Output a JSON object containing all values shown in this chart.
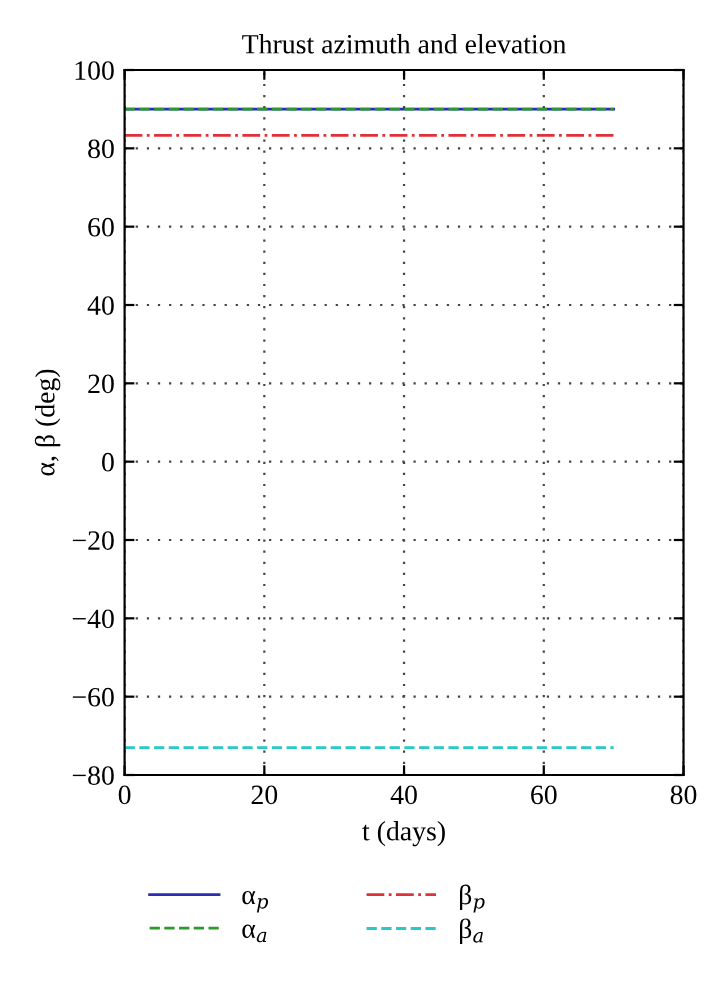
{
  "chart_data": {
    "type": "line",
    "title": "Thrust azimuth and elevation",
    "xlabel": "t (days)",
    "ylabel": "α, β (deg)",
    "x": [
      0,
      70
    ],
    "series": [
      {
        "name": "α$_{p}$",
        "color": "#2b2bb5",
        "values": [
          90,
          90
        ],
        "line_style": "solid"
      },
      {
        "name": "α$_{a}$",
        "color": "#2a9a2a",
        "values": [
          90,
          90
        ],
        "line_style": "dashed"
      },
      {
        "name": "β$_{p}$",
        "color": "#e0303a",
        "values": [
          83.3,
          83.3
        ],
        "line_style": "dashdot"
      },
      {
        "name": "β$_{a}$",
        "color": "#2ac8c8",
        "values": [
          -73,
          -73
        ],
        "line_style": "dashed"
      }
    ],
    "xlim": [
      0,
      80
    ],
    "xticks": [
      0,
      20,
      40,
      60,
      80
    ],
    "ylim": [
      -80,
      100
    ],
    "yticks": [
      -80,
      -60,
      -40,
      -20,
      0,
      20,
      40,
      60,
      80,
      100
    ],
    "grid": true,
    "legend": "bottom",
    "marker": "none"
  }
}
